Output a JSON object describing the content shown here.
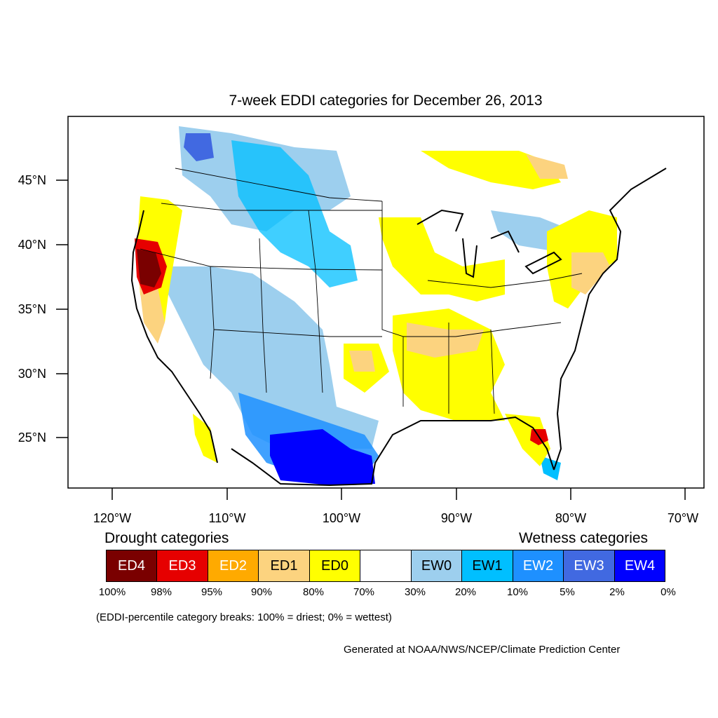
{
  "title": "7-week EDDI categories for December 26, 2013",
  "lat_labels": [
    "45°N",
    "40°N",
    "35°N",
    "30°N",
    "25°N"
  ],
  "lon_labels": [
    "120°W",
    "110°W",
    "100°W",
    "90°W",
    "80°W",
    "70°W"
  ],
  "legend": {
    "drought_heading": "Drought categories",
    "wetness_heading": "Wetness categories",
    "categories": [
      {
        "label": "ED4",
        "color": "#7a0000",
        "text_color": "#ffffff"
      },
      {
        "label": "ED3",
        "color": "#e60000",
        "text_color": "#ffffff"
      },
      {
        "label": "ED2",
        "color": "#ffaa00",
        "text_color": "#ffffff"
      },
      {
        "label": "ED1",
        "color": "#fcd37f",
        "text_color": "#000000"
      },
      {
        "label": "ED0",
        "color": "#ffff00",
        "text_color": "#000000"
      },
      {
        "label": "",
        "color": "#ffffff",
        "text_color": "#000000"
      },
      {
        "label": "EW0",
        "color": "#9dcfee",
        "text_color": "#000000"
      },
      {
        "label": "EW1",
        "color": "#00bfff",
        "text_color": "#000000"
      },
      {
        "label": "EW2",
        "color": "#1e90ff",
        "text_color": "#ffffff"
      },
      {
        "label": "EW3",
        "color": "#4169e1",
        "text_color": "#ffffff"
      },
      {
        "label": "EW4",
        "color": "#0000ff",
        "text_color": "#ffffff"
      }
    ],
    "ticks": [
      "100%",
      "98%",
      "95%",
      "90%",
      "80%",
      "70%",
      "30%",
      "20%",
      "10%",
      "5%",
      "2%",
      "0%"
    ],
    "note": "(EDDI-percentile category breaks: 100% = driest; 0% = wettest)"
  },
  "credit": "Generated at NOAA/NWS/NCEP/Climate Prediction Center"
}
